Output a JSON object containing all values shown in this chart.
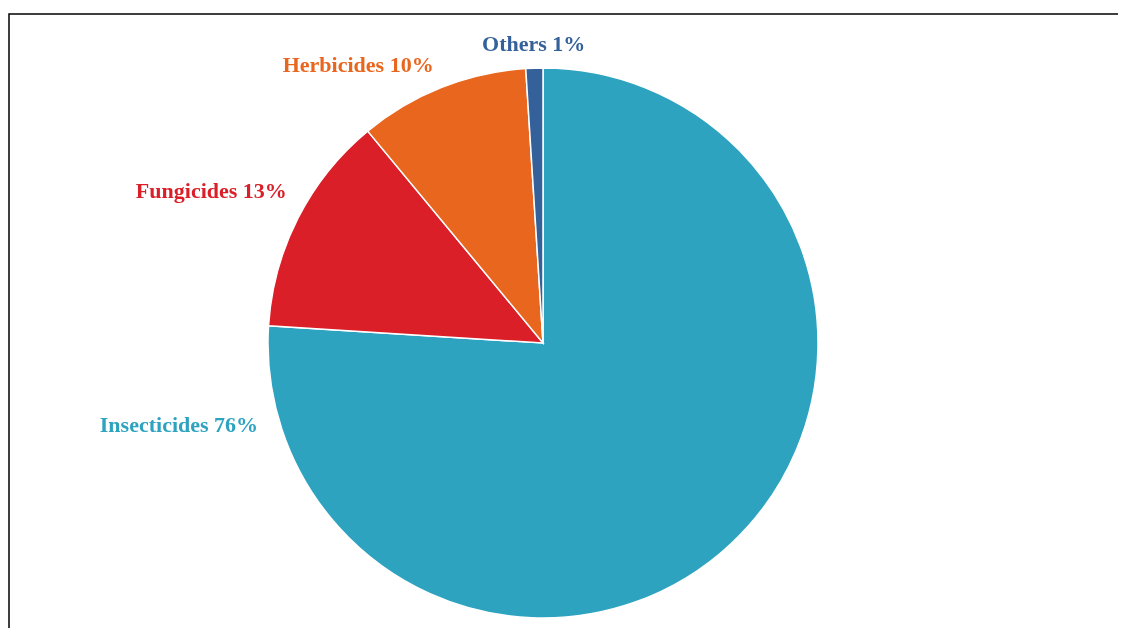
{
  "chart_data": {
    "type": "pie",
    "categories": [
      "Insecticides 76%",
      "Fungicides 13%",
      "Herbicides 10%",
      "Others 1%"
    ],
    "values": [
      76,
      13,
      10,
      1
    ],
    "colors": [
      "#2ea3c0",
      "#db1f28",
      "#e9661e",
      "#34619a"
    ]
  }
}
